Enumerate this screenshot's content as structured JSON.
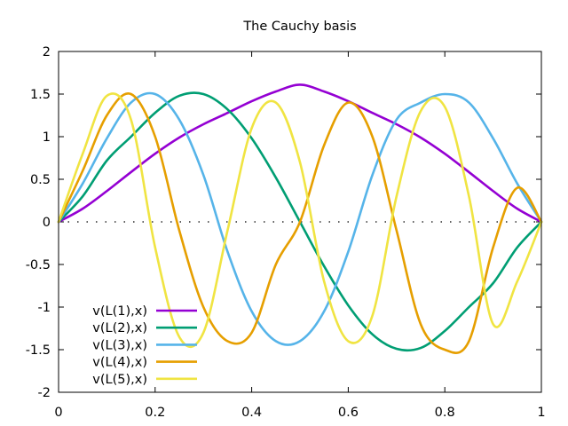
{
  "chart_data": {
    "type": "line",
    "title": "The Cauchy basis",
    "xlabel": "",
    "ylabel": "",
    "xlim": [
      0,
      1
    ],
    "ylim": [
      -2,
      2
    ],
    "x_ticks": [
      "0",
      "0.2",
      "0.4",
      "0.6",
      "0.8",
      "1"
    ],
    "y_ticks": [
      "2",
      "1.5",
      "1",
      "0.5",
      "0",
      "-0.5",
      "-1",
      "-1.5",
      "-2"
    ],
    "grid": false,
    "zero_line": "dotted",
    "legend_position": "bottom-left",
    "x": [
      0,
      0.05,
      0.1,
      0.15,
      0.2,
      0.25,
      0.3,
      0.35,
      0.4,
      0.45,
      0.5,
      0.55,
      0.6,
      0.65,
      0.7,
      0.75,
      0.8,
      0.85,
      0.9,
      0.95,
      1
    ],
    "series": [
      {
        "name": "v(L(1),x)",
        "color": "#9400d3",
        "values": [
          0,
          0.155,
          0.362,
          0.584,
          0.8,
          0.99,
          1.146,
          1.279,
          1.416,
          1.53,
          1.61,
          1.53,
          1.416,
          1.279,
          1.146,
          0.99,
          0.8,
          0.584,
          0.362,
          0.155,
          0
        ]
      },
      {
        "name": "v(L(2),x)",
        "color": "#009e73",
        "values": [
          0,
          0.3,
          0.72,
          1.0,
          1.28,
          1.48,
          1.5,
          1.32,
          0.98,
          0.52,
          0.0,
          -0.52,
          -0.98,
          -1.32,
          -1.49,
          -1.48,
          -1.28,
          -1.0,
          -0.72,
          -0.3,
          0
        ]
      },
      {
        "name": "v(L(3),x)",
        "color": "#56b4e9",
        "values": [
          0,
          0.45,
          0.98,
          1.4,
          1.5,
          1.2,
          0.55,
          -0.35,
          -1.05,
          -1.4,
          -1.4,
          -1.05,
          -0.35,
          0.55,
          1.2,
          1.4,
          1.5,
          1.4,
          0.98,
          0.45,
          0
        ]
      },
      {
        "name": "v(L(4),x)",
        "color": "#e69f00",
        "values": [
          0,
          0.6,
          1.25,
          1.5,
          1.0,
          -0.1,
          -1.0,
          -1.4,
          -1.3,
          -0.5,
          0.0,
          0.9,
          1.4,
          1.0,
          -0.1,
          -1.2,
          -1.5,
          -1.4,
          -0.3,
          0.4,
          0
        ]
      },
      {
        "name": "v(L(5),x)",
        "color": "#f0e442",
        "values": [
          0,
          0.8,
          1.48,
          1.2,
          -0.3,
          -1.35,
          -1.3,
          -0.1,
          1.1,
          1.4,
          0.7,
          -0.7,
          -1.4,
          -1.1,
          0.3,
          1.3,
          1.35,
          0.3,
          -1.2,
          -0.7,
          0
        ]
      }
    ]
  }
}
